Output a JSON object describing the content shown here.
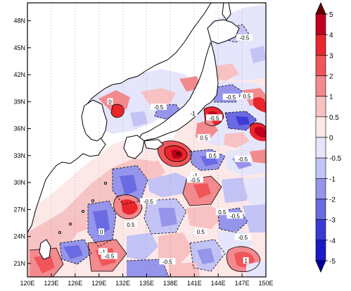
{
  "map": {
    "lat_labels": [
      "48N",
      "45N",
      "42N",
      "39N",
      "36N",
      "33N",
      "30N",
      "27N",
      "24N",
      "21N"
    ],
    "lon_labels": [
      "120E",
      "123E",
      "126E",
      "129E",
      "132E",
      "135E",
      "138E",
      "141E",
      "144E",
      "147E",
      "150E"
    ],
    "contour_labels": [
      {
        "text": "-0.5",
        "lat": 38.4,
        "lon": 136.5
      },
      {
        "text": "0.5",
        "lat": 39.6,
        "lon": 147.6
      },
      {
        "text": "-0.5",
        "lat": 39.5,
        "lon": 145.6
      },
      {
        "text": "-1",
        "lat": 37.7,
        "lon": 140.8
      },
      {
        "text": "-0.5",
        "lat": 37.2,
        "lon": 143.5
      },
      {
        "text": "0.5",
        "lat": 35.0,
        "lon": 142.2
      },
      {
        "text": "-0.5",
        "lat": 46.1,
        "lon": 147.3
      },
      {
        "text": "-0.5",
        "lat": 32.6,
        "lon": 147.1
      },
      {
        "text": "0.5",
        "lat": 33.0,
        "lon": 143.3
      },
      {
        "text": "-1",
        "lat": 30.8,
        "lon": 141.1
      },
      {
        "text": "-0.5",
        "lat": 30.3,
        "lon": 141.1
      },
      {
        "text": "-0.5",
        "lat": 27.9,
        "lon": 135.2
      },
      {
        "text": "0.5",
        "lat": 25.3,
        "lon": 133.0
      },
      {
        "text": "-1",
        "lat": 22.3,
        "lon": 129.5
      },
      {
        "text": "-0.5",
        "lat": 21.8,
        "lon": 130.3
      },
      {
        "text": "-0.5",
        "lat": 23.9,
        "lon": 147.1
      },
      {
        "text": "0.5",
        "lat": 26.7,
        "lon": 144.5
      },
      {
        "text": "-0.5",
        "lat": 26.3,
        "lon": 146.1
      },
      {
        "text": "0.5",
        "lat": 24.5,
        "lon": 141.8
      },
      {
        "text": "1",
        "lat": 21.3,
        "lon": 147.5
      },
      {
        "text": "-0.5",
        "lat": 21.2,
        "lon": 137.6
      },
      {
        "text": "0",
        "lat": 24.5,
        "lon": 129.3
      },
      {
        "text": "0",
        "lat": 39.0,
        "lon": 130.4
      }
    ]
  },
  "colorbar": {
    "levels": [
      "5",
      "4",
      "3",
      "2",
      "1",
      "0.5",
      "0",
      "-0.5",
      "-1",
      "-2",
      "-3",
      "-4",
      "-5"
    ],
    "colors": [
      "#6b0000",
      "#c1001f",
      "#e8262c",
      "#f0555a",
      "#f38a8d",
      "#f8c1c2",
      "#fde8e8",
      "#e5e5fb",
      "#c3c3f5",
      "#9595ec",
      "#6a6ae2",
      "#3a3ad6",
      "#1a1ac7",
      "#0000a3"
    ],
    "top_arrow_color": "#6b0000",
    "bottom_arrow_color": "#0000a3"
  }
}
